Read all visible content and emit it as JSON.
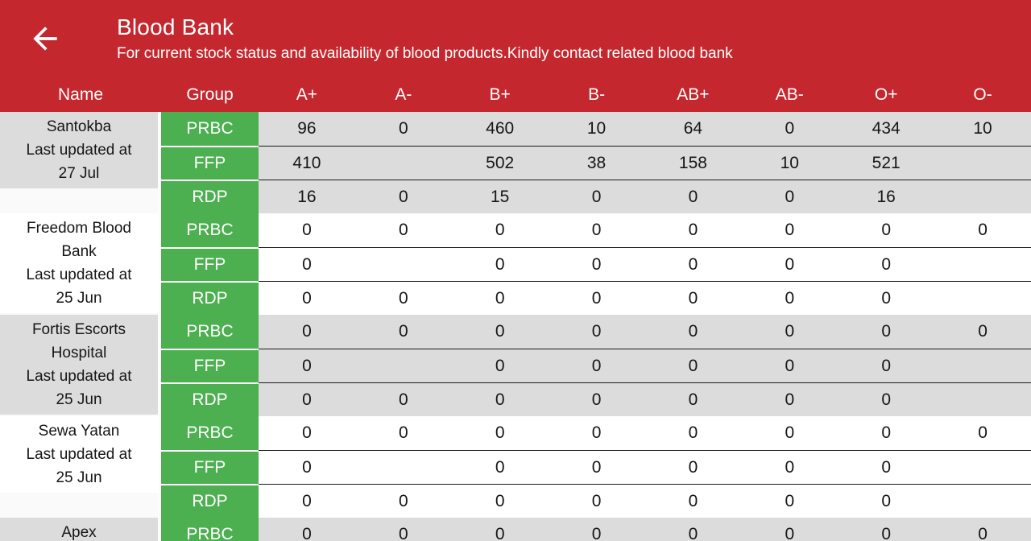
{
  "header": {
    "title": "Blood Bank",
    "subtitle": "For current stock status and availability of blood products.Kindly contact related blood bank",
    "back_icon": "arrow-left"
  },
  "colors": {
    "header_red": "#c4282e",
    "group_green": "#4caf50",
    "row_gray": "#dcdcdc",
    "row_white": "#ffffff",
    "name_leftover": "#fafafa",
    "row_divider": "#1a1a1a",
    "header_text": "#ffffff",
    "body_text": "#161616"
  },
  "table": {
    "columns": [
      "Name",
      "Group",
      "A+",
      "A-",
      "B+",
      "B-",
      "AB+",
      "AB-",
      "O+",
      "O-"
    ],
    "banks": [
      {
        "name_lines": [
          "Santokba",
          "Last updated at",
          "27 Jul"
        ],
        "shade": "gray",
        "rows": [
          {
            "group": "PRBC",
            "values": [
              "96",
              "0",
              "460",
              "10",
              "64",
              "0",
              "434",
              "10"
            ]
          },
          {
            "group": "FFP",
            "values": [
              "410",
              "",
              "502",
              "38",
              "158",
              "10",
              "521",
              ""
            ]
          },
          {
            "group": "RDP",
            "values": [
              "16",
              "0",
              "15",
              "0",
              "0",
              "0",
              "16",
              ""
            ]
          }
        ]
      },
      {
        "name_lines": [
          "Freedom Blood",
          "Bank",
          "Last updated at",
          "25 Jun"
        ],
        "shade": "white",
        "rows": [
          {
            "group": "PRBC",
            "values": [
              "0",
              "0",
              "0",
              "0",
              "0",
              "0",
              "0",
              "0"
            ]
          },
          {
            "group": "FFP",
            "values": [
              "0",
              "",
              "0",
              "0",
              "0",
              "0",
              "0",
              ""
            ]
          },
          {
            "group": "RDP",
            "values": [
              "0",
              "0",
              "0",
              "0",
              "0",
              "0",
              "0",
              ""
            ]
          }
        ]
      },
      {
        "name_lines": [
          "Fortis Escorts",
          "Hospital",
          "Last updated at",
          "25 Jun"
        ],
        "shade": "gray",
        "rows": [
          {
            "group": "PRBC",
            "values": [
              "0",
              "0",
              "0",
              "0",
              "0",
              "0",
              "0",
              "0"
            ]
          },
          {
            "group": "FFP",
            "values": [
              "0",
              "",
              "0",
              "0",
              "0",
              "0",
              "0",
              ""
            ]
          },
          {
            "group": "RDP",
            "values": [
              "0",
              "0",
              "0",
              "0",
              "0",
              "0",
              "0",
              ""
            ]
          }
        ]
      },
      {
        "name_lines": [
          "Sewa Yatan",
          "Last updated at",
          "25 Jun"
        ],
        "shade": "white",
        "rows": [
          {
            "group": "PRBC",
            "values": [
              "0",
              "0",
              "0",
              "0",
              "0",
              "0",
              "0",
              "0"
            ]
          },
          {
            "group": "FFP",
            "values": [
              "0",
              "",
              "0",
              "0",
              "0",
              "0",
              "0",
              ""
            ]
          },
          {
            "group": "RDP",
            "values": [
              "0",
              "0",
              "0",
              "0",
              "0",
              "0",
              "0",
              ""
            ]
          }
        ]
      },
      {
        "name_lines": [
          "Apex"
        ],
        "shade": "gray",
        "rows": [
          {
            "group": "PRBC",
            "values": [
              "0",
              "0",
              "0",
              "0",
              "0",
              "0",
              "0",
              "0"
            ]
          }
        ]
      }
    ]
  }
}
